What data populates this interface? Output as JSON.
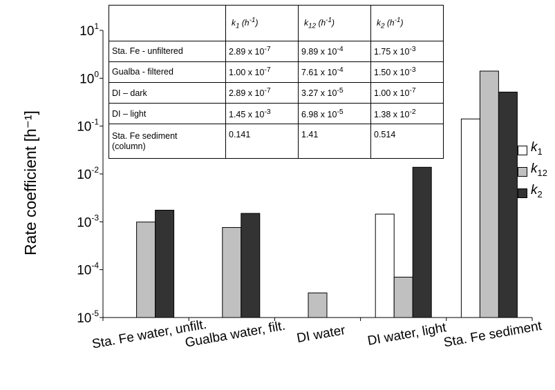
{
  "chart_data": {
    "type": "bar",
    "yscale": "log",
    "ylim": [
      1e-05,
      10
    ],
    "ylabel": "Rate coefficient [h⁻¹]",
    "xlabel": "",
    "categories": [
      "Sta. Fe water, unfilt.",
      "Gualba water, filt.",
      "DI water",
      "DI water, light",
      "Sta. Fe sediment"
    ],
    "series": [
      {
        "name": "k1",
        "color": "#ffffff",
        "values": [
          null,
          null,
          null,
          0.00145,
          0.141
        ]
      },
      {
        "name": "k12",
        "color": "#c0c0c0",
        "values": [
          0.000989,
          0.000761,
          3.27e-05,
          6.98e-05,
          1.41
        ]
      },
      {
        "name": "k2",
        "color": "#333333",
        "values": [
          0.00175,
          0.0015,
          null,
          0.0138,
          0.514
        ]
      }
    ],
    "yticks": [
      {
        "base": "10",
        "exp": "1"
      },
      {
        "base": "10",
        "exp": "0"
      },
      {
        "base": "10",
        "exp": "-1"
      },
      {
        "base": "10",
        "exp": "-2"
      },
      {
        "base": "10",
        "exp": "-3"
      },
      {
        "base": "10",
        "exp": "-4"
      },
      {
        "base": "10",
        "exp": "-5"
      }
    ],
    "legend": {
      "placement": "right",
      "items": [
        {
          "sym": "k",
          "sub": "1",
          "color": "#ffffff"
        },
        {
          "sym": "k",
          "sub": "12",
          "color": "#c0c0c0"
        },
        {
          "sym": "k",
          "sub": "2",
          "color": "#333333"
        }
      ]
    }
  },
  "table": {
    "headers": [
      {
        "sym": "k",
        "sub": "1",
        "unit": "(h",
        "exp": "-1",
        "close": ")"
      },
      {
        "sym": "k",
        "sub": "12",
        "unit": "(h",
        "exp": "-1",
        "close": ")"
      },
      {
        "sym": "k",
        "sub": "2",
        "unit": "(h",
        "exp": "-1",
        "close": ")"
      }
    ],
    "rows": [
      {
        "label": "Sta. Fe - unfiltered",
        "cells": [
          {
            "m": "2.89 x 10",
            "e": "-7"
          },
          {
            "m": "9.89 x 10",
            "e": "-4"
          },
          {
            "m": "1.75 x 10",
            "e": "-3"
          }
        ]
      },
      {
        "label": "Gualba - filtered",
        "cells": [
          {
            "m": "1.00 x 10",
            "e": "-7"
          },
          {
            "m": "7.61 x 10",
            "e": "-4"
          },
          {
            "m": "1.50 x 10",
            "e": "-3"
          }
        ]
      },
      {
        "label": "DI – dark",
        "cells": [
          {
            "m": "2.89 x 10",
            "e": "-7"
          },
          {
            "m": "3.27 x 10",
            "e": "-5"
          },
          {
            "m": "1.00 x 10",
            "e": "-7"
          }
        ]
      },
      {
        "label": "DI – light",
        "cells": [
          {
            "m": "1.45 x 10",
            "e": "-3"
          },
          {
            "m": "6.98 x 10",
            "e": "-5"
          },
          {
            "m": "1.38 x 10",
            "e": "-2"
          }
        ]
      }
    ],
    "last_row": {
      "label1": "Sta. Fe sediment",
      "label2": "(column)",
      "cells": [
        {
          "m": "0.141"
        },
        {
          "m": "1.41"
        },
        {
          "m": "0.514"
        }
      ]
    }
  }
}
